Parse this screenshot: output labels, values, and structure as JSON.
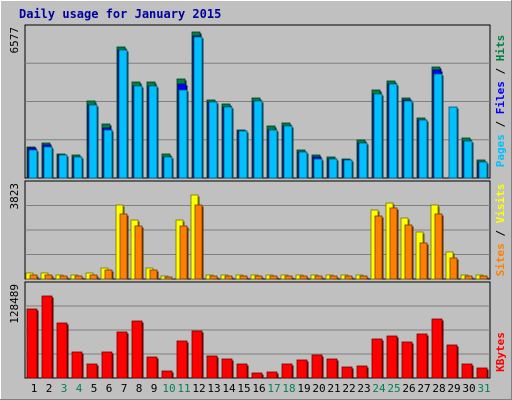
{
  "chart_data": {
    "title": "Daily usage for January 2015",
    "days": [
      "1",
      "2",
      "3",
      "4",
      "5",
      "6",
      "7",
      "8",
      "9",
      "10",
      "11",
      "12",
      "13",
      "14",
      "15",
      "16",
      "17",
      "18",
      "19",
      "20",
      "21",
      "22",
      "23",
      "24",
      "25",
      "26",
      "27",
      "28",
      "29",
      "30",
      "31"
    ],
    "weekend_days": [
      "3",
      "4",
      "10",
      "11",
      "17",
      "18",
      "24",
      "25",
      "31"
    ],
    "panels": [
      {
        "type": "bar",
        "ymax_label": "6577",
        "ylim": [
          0,
          6577
        ],
        "series": [
          {
            "name": "Hits",
            "color": "#008040",
            "values": [
              1377,
              1527,
              1078,
              1003,
              3378,
              2366,
              5802,
              4226,
              4226,
              1078,
              4377,
              6427,
              3428,
              3278,
              2129,
              3528,
              2278,
              2429,
              1228,
              1003,
              928,
              853,
              1678,
              3878,
              4303,
              3528,
              2653,
              4900,
              0,
              1777,
              803
            ]
          },
          {
            "name": "Files",
            "color": "#0000ff",
            "values": [
              1303,
              1453,
              1003,
              928,
              3229,
              2218,
              5652,
              4076,
              4076,
              928,
              4154,
              6277,
              3354,
              3128,
              2054,
              3378,
              2129,
              2278,
              1153,
              928,
              853,
              778,
              1528,
              3728,
              4154,
              3454,
              2578,
              4752,
              0,
              1629,
              728
            ]
          },
          {
            "name": "Pages",
            "color": "#00c0ff",
            "values": [
              1228,
              1378,
              1003,
              928,
              3229,
              2129,
              5652,
              4076,
              4076,
              928,
              3901,
              6202,
              3354,
              3128,
              2054,
              3378,
              2129,
              2278,
              1153,
              853,
              853,
              778,
              1528,
              3728,
              4154,
              3378,
              2578,
              4603,
              3154,
              1629,
              728
            ]
          }
        ]
      },
      {
        "type": "bar",
        "ymax_label": "3823",
        "ylim": [
          0,
          3823
        ],
        "series": [
          {
            "name": "Visits",
            "color": "#ffff00",
            "values": [
              235,
              235,
              159,
              159,
              235,
              459,
              3023,
              2404,
              459,
              106,
              2404,
              3423,
              159,
              159,
              159,
              159,
              159,
              159,
              159,
              159,
              159,
              159,
              159,
              2794,
              3102,
              2494,
              1904,
              3023,
              1084,
              159,
              159
            ]
          },
          {
            "name": "Sites",
            "color": "#ff8000",
            "values": [
              159,
              159,
              106,
              106,
              159,
              376,
              2640,
              2173,
              376,
              68,
              2173,
              3023,
              106,
              106,
              106,
              106,
              106,
              106,
              106,
              106,
              106,
              106,
              106,
              2565,
              2871,
              2191,
              1452,
              2640,
              859,
              106,
              106
            ]
          }
        ]
      },
      {
        "type": "bar",
        "ymax_label": "128489",
        "ylim": [
          0,
          128489
        ],
        "series": [
          {
            "name": "KBytes",
            "color": "#ff0000",
            "values": [
              97000,
              114000,
              77000,
              37000,
              20000,
              37000,
              64000,
              80000,
              30000,
              10000,
              52000,
              65000,
              31000,
              26000,
              20000,
              7000,
              9000,
              20000,
              25000,
              32000,
              26000,
              15000,
              17000,
              54000,
              58000,
              50000,
              61000,
              82000,
              46000,
              20000,
              14000
            ]
          }
        ]
      }
    ]
  }
}
